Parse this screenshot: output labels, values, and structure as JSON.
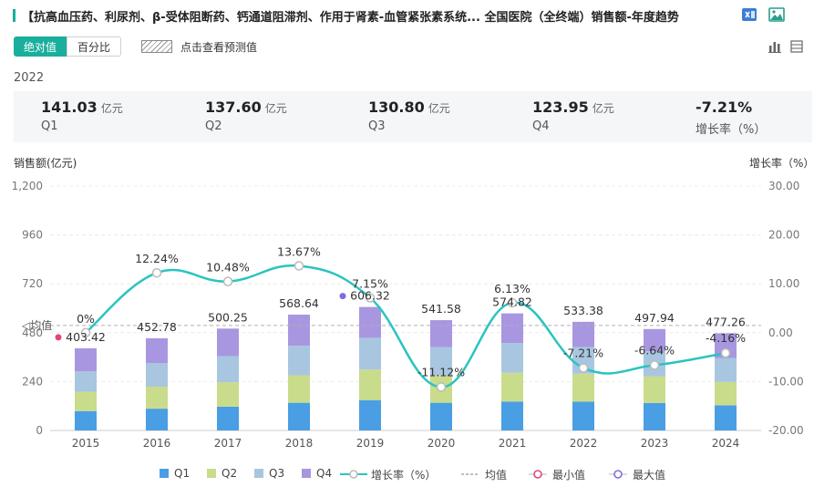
{
  "header": {
    "title": "【抗高血压药、利尿剂、β-受体阻断药、钙通道阻滞剂、作用于肾素-血管紧张素系统...   全国医院（全终端）销售额-年度趋势"
  },
  "toolbar": {
    "absolute_label": "绝对值",
    "percent_label": "百分比",
    "forecast_label": "点击查看预测值"
  },
  "summary": {
    "year": "2022",
    "unit": "亿元",
    "items": [
      {
        "value": "141.03",
        "label": "Q1"
      },
      {
        "value": "137.60",
        "label": "Q2"
      },
      {
        "value": "130.80",
        "label": "Q3"
      },
      {
        "value": "123.95",
        "label": "Q4"
      }
    ],
    "growth": {
      "value": "-7.21%",
      "label": "增长率（%）"
    }
  },
  "axes": {
    "left_title": "销售额(亿元)",
    "right_title": "增长率（%）",
    "mean_label": "均值"
  },
  "legend": {
    "q1": "Q1",
    "q2": "Q2",
    "q3": "Q3",
    "q4": "Q4",
    "growth": "增长率（%）",
    "mean": "均值",
    "min": "最小值",
    "max": "最大值"
  },
  "colors": {
    "q1": "#4a9ee3",
    "q2": "#c8dc8c",
    "q3": "#a8c6e0",
    "q4": "#a996e0",
    "growth": "#2bc4c0",
    "min": "#e0457b",
    "max": "#7a6fe0",
    "mean": "#b0b0b0"
  },
  "chart_data": {
    "type": "bar",
    "stacked": true,
    "categories": [
      "2015",
      "2016",
      "2017",
      "2018",
      "2019",
      "2020",
      "2021",
      "2022",
      "2023",
      "2024"
    ],
    "series": [
      {
        "name": "Q1",
        "values": [
          95,
          107,
          117,
          136,
          149,
          136,
          142,
          141.03,
          135,
          123
        ]
      },
      {
        "name": "Q2",
        "values": [
          95,
          108,
          120,
          135,
          150,
          134,
          141,
          137.6,
          131,
          115
        ]
      },
      {
        "name": "Q3",
        "values": [
          100,
          115,
          128,
          145,
          156,
          139,
          146,
          130.8,
          123,
          118
        ]
      },
      {
        "name": "Q4",
        "values": [
          113.42,
          122.78,
          135.25,
          152.64,
          151.32,
          132.58,
          145.82,
          123.95,
          108.94,
          121.26
        ]
      }
    ],
    "totals": [
      403.42,
      452.78,
      500.25,
      568.64,
      606.32,
      541.58,
      574.82,
      533.38,
      497.94,
      477.26
    ],
    "total_labels": [
      "403.42",
      "452.78",
      "500.25",
      "568.64",
      "606.32",
      "541.58",
      "574.82",
      "533.38",
      "497.94",
      "477.26"
    ],
    "growth": [
      0,
      12.24,
      10.48,
      13.67,
      7.15,
      -11.12,
      6.13,
      -7.21,
      -6.64,
      -4.16
    ],
    "growth_labels": [
      "0%",
      "12.24%",
      "10.48%",
      "13.67%",
      "7.15%",
      "-11.12%",
      "6.13%",
      "-7.21%",
      "-6.64%",
      "-4.16%"
    ],
    "mean": 515.64,
    "min_index": 0,
    "max_index": 4,
    "ylim_left": [
      0,
      1200
    ],
    "yticks_left": [
      "0",
      "240",
      "480",
      "720",
      "960",
      "1,200"
    ],
    "ylim_right": [
      -20,
      30
    ],
    "yticks_right": [
      "-20.00",
      "-10.00",
      "0.00",
      "10.00",
      "20.00",
      "30.00"
    ],
    "grid": true,
    "legend_position": "bottom"
  }
}
